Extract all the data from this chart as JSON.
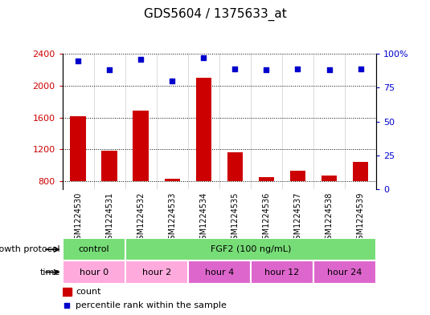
{
  "title": "GDS5604 / 1375633_at",
  "samples": [
    "GSM1224530",
    "GSM1224531",
    "GSM1224532",
    "GSM1224533",
    "GSM1224534",
    "GSM1224535",
    "GSM1224536",
    "GSM1224537",
    "GSM1224538",
    "GSM1224539"
  ],
  "counts": [
    1620,
    1185,
    1690,
    830,
    2100,
    1160,
    855,
    935,
    870,
    1040
  ],
  "percentiles": [
    95,
    88,
    96,
    80,
    97,
    89,
    88,
    89,
    88,
    89
  ],
  "ylim_left": [
    700,
    2400
  ],
  "ylim_right": [
    0,
    100
  ],
  "yticks_left": [
    800,
    1200,
    1600,
    2000,
    2400
  ],
  "yticks_right": [
    0,
    25,
    50,
    75,
    100
  ],
  "bar_color": "#cc0000",
  "scatter_color": "#0000cc",
  "chart_bg": "#ffffff",
  "xticklabel_bg": "#d3d3d3",
  "growth_protocol_row": {
    "label": "growth protocol",
    "groups": [
      {
        "text": "control",
        "start": 0,
        "end": 2,
        "color": "#77dd77"
      },
      {
        "text": "FGF2 (100 ng/mL)",
        "start": 2,
        "end": 10,
        "color": "#77dd77"
      }
    ]
  },
  "time_row": {
    "label": "time",
    "groups": [
      {
        "text": "hour 0",
        "start": 0,
        "end": 2,
        "color": "#ffaadd"
      },
      {
        "text": "hour 2",
        "start": 2,
        "end": 4,
        "color": "#ffaadd"
      },
      {
        "text": "hour 4",
        "start": 4,
        "end": 6,
        "color": "#dd66cc"
      },
      {
        "text": "hour 12",
        "start": 6,
        "end": 8,
        "color": "#dd66cc"
      },
      {
        "text": "hour 24",
        "start": 8,
        "end": 10,
        "color": "#dd66cc"
      }
    ]
  },
  "legend_items": [
    {
      "label": "count",
      "color": "#cc0000"
    },
    {
      "label": "percentile rank within the sample",
      "color": "#0000cc"
    }
  ],
  "bar_width": 0.5,
  "background_color": "#ffffff"
}
